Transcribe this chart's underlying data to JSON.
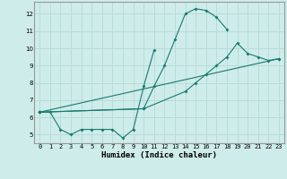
{
  "xlabel": "Humidex (Indice chaleur)",
  "background_color": "#ceecea",
  "grid_color": "#b8dcd8",
  "line_color": "#1a7a6e",
  "xlim": [
    -0.5,
    23.5
  ],
  "ylim": [
    4.5,
    12.7
  ],
  "yticks": [
    5,
    6,
    7,
    8,
    9,
    10,
    11,
    12
  ],
  "xticks": [
    0,
    1,
    2,
    3,
    4,
    5,
    6,
    7,
    8,
    9,
    10,
    11,
    12,
    13,
    14,
    15,
    16,
    17,
    18,
    19,
    20,
    21,
    22,
    23
  ],
  "s1x": [
    0,
    1,
    2,
    3,
    4,
    5,
    6,
    7,
    8,
    9,
    10,
    11
  ],
  "s1y": [
    6.3,
    6.3,
    5.3,
    5.0,
    5.3,
    5.3,
    5.3,
    5.3,
    4.8,
    5.3,
    7.8,
    9.9
  ],
  "s2x": [
    0,
    10,
    11,
    12,
    13,
    14,
    15,
    16,
    17,
    18
  ],
  "s2y": [
    6.3,
    6.5,
    7.8,
    9.0,
    10.5,
    12.0,
    12.3,
    12.2,
    11.8,
    11.1
  ],
  "s3x": [
    0,
    10,
    14,
    15,
    16,
    17,
    18,
    19,
    20,
    21,
    22,
    23
  ],
  "s3y": [
    6.3,
    6.5,
    7.5,
    8.0,
    8.5,
    9.0,
    9.5,
    10.3,
    9.7,
    9.5,
    9.3,
    9.4
  ],
  "s4x": [
    0,
    23
  ],
  "s4y": [
    6.3,
    9.4
  ],
  "ylabel_fontsize": 5.5,
  "xlabel_fontsize": 6.5,
  "tick_fontsize": 5.0
}
